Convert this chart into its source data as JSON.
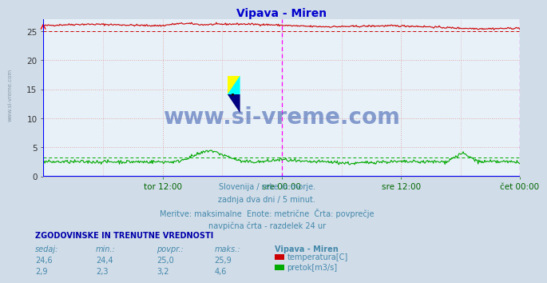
{
  "title": "Vipava - Miren",
  "title_color": "#0000cc",
  "bg_color": "#d0dce8",
  "plot_bg_color": "#e8f0f8",
  "grid_color_h": "#ddaaaa",
  "grid_color_v": "#ddaaaa",
  "x_labels": [
    "tor 12:00",
    "sre 00:00",
    "sre 12:00",
    "čet 00:00"
  ],
  "x_label_color": "#006600",
  "y_ticks": [
    0,
    5,
    10,
    15,
    20,
    25
  ],
  "ylim": [
    0,
    27
  ],
  "temp_color": "#cc0000",
  "flow_color": "#00aa00",
  "vline_color": "#ff00ff",
  "border_color": "#0000ff",
  "temp_avg": 25.0,
  "flow_avg": 3.2,
  "watermark": "www.si-vreme.com",
  "watermark_color": "#3355aa",
  "sub_text1": "Slovenija / reke in morje.",
  "sub_text2": "zadnja dva dni / 5 minut.",
  "sub_text3": "Meritve: maksimalne  Enote: metrične  Črta: povprečje",
  "sub_text4": "navpična črta - razdelek 24 ur",
  "sub_color": "#4488aa",
  "table_header": "ZGODOVINSKE IN TRENUTNE VREDNOSTI",
  "table_header_color": "#0000aa",
  "col_labels": [
    "sedaj:",
    "min.:",
    "povpr.:",
    "maks.:",
    "Vipava - Miren"
  ],
  "col_color": "#4488aa",
  "row1": [
    "24,6",
    "24,4",
    "25,0",
    "25,9"
  ],
  "row2": [
    "2,9",
    "2,3",
    "3,2",
    "4,6"
  ],
  "row_color": "#4488aa",
  "legend_temp": "temperatura[C]",
  "legend_flow": "pretok[m3/s]",
  "legend_color": "#4488aa",
  "n_points": 576,
  "temp_base": 25.8,
  "flow_base": 2.5,
  "sidebar_text": "www.si-vreme.com",
  "sidebar_color": "#8899aa"
}
